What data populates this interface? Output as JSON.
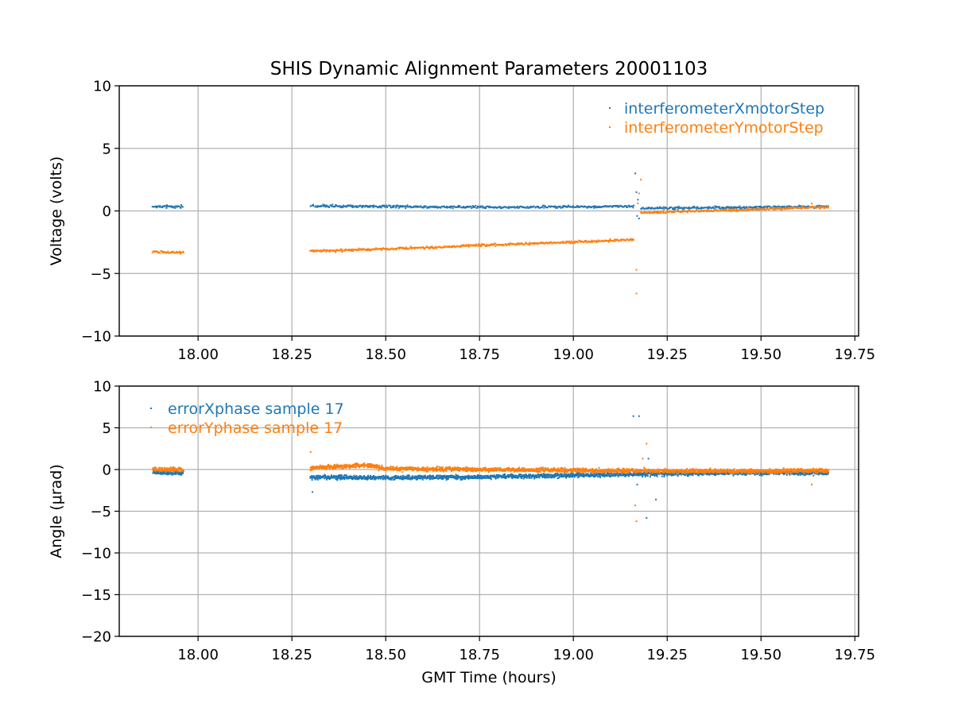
{
  "chart_data": {
    "title": "SHIS Dynamic Alignment Parameters 20001103",
    "xlabel": "GMT Time (hours)",
    "colors": {
      "series_1": "#1f77b4",
      "series_2": "#ff7f0e"
    },
    "panels": [
      {
        "type": "scatter",
        "ylabel": "Voltage (volts)",
        "xlim": [
          17.79,
          19.76
        ],
        "ylim": [
          -10,
          10
        ],
        "xticks": [
          18.0,
          18.25,
          18.5,
          18.75,
          19.0,
          19.25,
          19.5,
          19.75
        ],
        "xtick_labels": [
          "18.00",
          "18.25",
          "18.50",
          "18.75",
          "19.00",
          "19.25",
          "19.50",
          "19.75"
        ],
        "yticks": [
          10,
          5,
          0,
          -5,
          -10
        ],
        "ytick_labels": [
          "10",
          "5",
          "0",
          "−5",
          "−10"
        ],
        "grid": true,
        "legend_position": "top-right",
        "series": [
          {
            "name": "interferometerXmotorStep",
            "segments": [
              {
                "x": [
                  17.88,
                  17.96
                ],
                "y": [
                  0.35,
                  0.35
                ]
              },
              {
                "x": [
                  18.3,
                  18.5,
                  18.75,
                  19.0,
                  19.16
                ],
                "y": [
                  0.4,
                  0.35,
                  0.3,
                  0.32,
                  0.38
                ]
              },
              {
                "x": [
                  19.18,
                  19.35,
                  19.5,
                  19.68
                ],
                "y": [
                  0.2,
                  0.25,
                  0.3,
                  0.35
                ]
              }
            ],
            "outliers": [
              {
                "x": 19.165,
                "y": 3.0
              },
              {
                "x": 19.168,
                "y": 1.5
              },
              {
                "x": 19.172,
                "y": 0.9
              },
              {
                "x": 19.175,
                "y": -0.6
              },
              {
                "x": 19.17,
                "y": -0.4
              }
            ]
          },
          {
            "name": "interferometerYmotorStep",
            "segments": [
              {
                "x": [
                  17.88,
                  17.96
                ],
                "y": [
                  -3.3,
                  -3.3
                ]
              },
              {
                "x": [
                  18.3,
                  18.5,
                  18.75,
                  19.0,
                  19.16
                ],
                "y": [
                  -3.2,
                  -3.05,
                  -2.75,
                  -2.5,
                  -2.3
                ]
              },
              {
                "x": [
                  19.18,
                  19.35,
                  19.5,
                  19.68
                ],
                "y": [
                  -0.15,
                  0.0,
                  0.15,
                  0.3
                ]
              }
            ],
            "outliers": [
              {
                "x": 19.168,
                "y": -4.7
              },
              {
                "x": 19.168,
                "y": -6.6
              },
              {
                "x": 19.18,
                "y": 2.5
              },
              {
                "x": 19.175,
                "y": 1.4
              },
              {
                "x": 19.172,
                "y": 0.6
              },
              {
                "x": 19.635,
                "y": 0.6
              }
            ]
          }
        ]
      },
      {
        "type": "scatter",
        "ylabel": "Angle (μrad)",
        "xlim": [
          17.79,
          19.76
        ],
        "ylim": [
          -20,
          10
        ],
        "xticks": [
          18.0,
          18.25,
          18.5,
          18.75,
          19.0,
          19.25,
          19.5,
          19.75
        ],
        "xtick_labels": [
          "18.00",
          "18.25",
          "18.50",
          "18.75",
          "19.00",
          "19.25",
          "19.50",
          "19.75"
        ],
        "yticks": [
          10,
          5,
          0,
          -5,
          -10,
          -15,
          -20
        ],
        "ytick_labels": [
          "10",
          "5",
          "0",
          "−5",
          "−10",
          "−15",
          "−20"
        ],
        "grid": true,
        "legend_position": "top-left",
        "series": [
          {
            "name": "errorXphase sample 17",
            "segments": [
              {
                "x": [
                  17.88,
                  17.96
                ],
                "y": [
                  -0.4,
                  -0.4
                ]
              },
              {
                "x": [
                  18.3,
                  18.5,
                  18.75,
                  19.0,
                  19.25,
                  19.5,
                  19.68
                ],
                "y": [
                  -0.9,
                  -1.0,
                  -0.9,
                  -0.7,
                  -0.5,
                  -0.4,
                  -0.4
                ]
              }
            ],
            "outliers": [
              {
                "x": 18.305,
                "y": -2.7
              },
              {
                "x": 19.16,
                "y": 6.4
              },
              {
                "x": 19.175,
                "y": 6.4
              },
              {
                "x": 19.2,
                "y": 1.3
              },
              {
                "x": 19.22,
                "y": -3.6
              },
              {
                "x": 19.195,
                "y": -5.8
              },
              {
                "x": 19.17,
                "y": -1.8
              }
            ]
          },
          {
            "name": "errorYphase sample 17",
            "segments": [
              {
                "x": [
                  17.88,
                  17.96
                ],
                "y": [
                  0.0,
                  0.0
                ]
              },
              {
                "x": [
                  18.3,
                  18.45,
                  18.5,
                  18.75,
                  19.0,
                  19.25,
                  19.5,
                  19.68
                ],
                "y": [
                  0.2,
                  0.5,
                  0.1,
                  0.0,
                  -0.1,
                  -0.2,
                  -0.2,
                  -0.1
                ]
              }
            ],
            "outliers": [
              {
                "x": 18.3,
                "y": 2.1
              },
              {
                "x": 19.165,
                "y": -4.3
              },
              {
                "x": 19.168,
                "y": -6.2
              },
              {
                "x": 19.195,
                "y": 3.1
              },
              {
                "x": 19.185,
                "y": 1.3
              },
              {
                "x": 19.635,
                "y": -1.8
              }
            ]
          }
        ]
      }
    ]
  }
}
